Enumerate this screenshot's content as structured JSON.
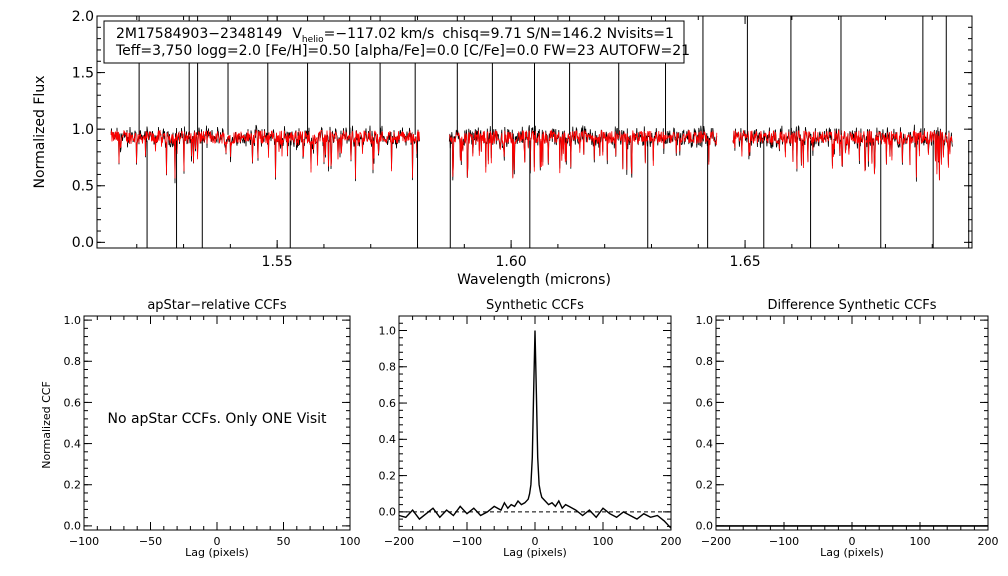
{
  "chart_data": [
    {
      "type": "line",
      "title": "",
      "xlabel": "Wavelength (microns)",
      "ylabel": "Normalized Flux",
      "xlim": [
        1.5115,
        1.6985
      ],
      "ylim": [
        -0.05,
        2.0
      ],
      "xticks": [
        1.55,
        1.6,
        1.65
      ],
      "xtick_labels": [
        "1.55",
        "1.60",
        "1.65"
      ],
      "yticks": [
        0.0,
        0.5,
        1.0,
        1.5,
        2.0
      ],
      "ytick_labels": [
        "0.0",
        "0.5",
        "1.0",
        "1.5",
        "2.0"
      ],
      "legend_box": {
        "line1": {
          "id": "2M17584903−2348149",
          "v_prefix": "V",
          "v_sub": "helio",
          "v_value": "=−117.02 km/s",
          "rest": "chisq=9.71  S/N=146.2  Nvisits=1"
        },
        "line2": "Teff=3,750 logg=2.0 [Fe/H]=0.50 [alpha/Fe]=0.0 [C/Fe]=0.0 FW=23 AUTOFW=21"
      },
      "detector_chips": [
        [
          1.5145,
          1.5805
        ],
        [
          1.5868,
          1.644
        ],
        [
          1.6474,
          1.6944
        ]
      ],
      "series": [
        {
          "name": "Observed spectrum",
          "color": "#000000"
        },
        {
          "name": "Best-fit model",
          "color": "#ff0000"
        }
      ]
    },
    {
      "type": "line",
      "title": "apStar−relative CCFs",
      "xlabel": "Lag (pixels)",
      "ylabel": "Normalized CCF",
      "xlim": [
        -100,
        100
      ],
      "ylim": [
        -0.02,
        1.02
      ],
      "xticks": [
        -100,
        -50,
        0,
        50,
        100
      ],
      "xtick_labels": [
        "−100",
        "−50",
        "0",
        "50",
        "100"
      ],
      "yticks": [
        0.0,
        0.2,
        0.4,
        0.6,
        0.8,
        1.0
      ],
      "ytick_labels": [
        "0.0",
        "0.2",
        "0.4",
        "0.6",
        "0.8",
        "1.0"
      ],
      "annotation": "No apStar CCFs.  Only ONE Visit",
      "series": []
    },
    {
      "type": "line",
      "title": "Synthetic CCFs",
      "xlabel": "Lag (pixels)",
      "ylabel": "",
      "xlim": [
        -200,
        200
      ],
      "ylim": [
        -0.1,
        1.08
      ],
      "xticks": [
        -200,
        -100,
        0,
        100,
        200
      ],
      "xtick_labels": [
        "−200",
        "−100",
        "0",
        "100",
        "200"
      ],
      "yticks": [
        0.0,
        0.2,
        0.4,
        0.6,
        0.8,
        1.0
      ],
      "ytick_labels": [
        "0.0",
        "0.2",
        "0.4",
        "0.6",
        "0.8",
        "1.0"
      ],
      "zero_line": 0.0,
      "series": [
        {
          "name": "Synthetic CCF",
          "color": "#000000",
          "x": [
            -200,
            -190,
            -180,
            -170,
            -160,
            -150,
            -140,
            -130,
            -120,
            -110,
            -100,
            -90,
            -80,
            -70,
            -60,
            -50,
            -45,
            -40,
            -35,
            -30,
            -25,
            -20,
            -15,
            -10,
            -8,
            -6,
            -4,
            -2,
            0,
            2,
            4,
            6,
            8,
            10,
            15,
            20,
            25,
            30,
            35,
            40,
            45,
            50,
            60,
            70,
            80,
            90,
            100,
            110,
            120,
            130,
            140,
            150,
            160,
            170,
            180,
            190,
            200
          ],
          "y": [
            -0.02,
            -0.03,
            0.01,
            -0.04,
            -0.01,
            0.02,
            -0.03,
            0.01,
            -0.02,
            0.03,
            -0.01,
            0.02,
            -0.02,
            0.0,
            0.03,
            0.01,
            0.05,
            0.02,
            0.04,
            0.03,
            0.06,
            0.04,
            0.05,
            0.07,
            0.1,
            0.15,
            0.3,
            0.65,
            1.0,
            0.65,
            0.3,
            0.15,
            0.11,
            0.08,
            0.06,
            0.04,
            0.05,
            0.03,
            0.06,
            0.02,
            0.04,
            0.03,
            0.01,
            -0.02,
            0.01,
            -0.03,
            0.02,
            -0.01,
            -0.03,
            0.0,
            -0.02,
            -0.04,
            -0.01,
            -0.03,
            -0.02,
            -0.05,
            -0.09
          ]
        }
      ]
    },
    {
      "type": "line",
      "title": "Difference Synthetic CCFs",
      "xlabel": "Lag (pixels)",
      "ylabel": "",
      "xlim": [
        -200,
        200
      ],
      "ylim": [
        -0.02,
        1.02
      ],
      "xticks": [
        -200,
        -100,
        0,
        100,
        200
      ],
      "xtick_labels": [
        "−200",
        "−100",
        "0",
        "100",
        "200"
      ],
      "yticks": [
        0.0,
        0.2,
        0.4,
        0.6,
        0.8,
        1.0
      ],
      "ytick_labels": [
        "0.0",
        "0.2",
        "0.4",
        "0.6",
        "0.8",
        "1.0"
      ],
      "series": [
        {
          "name": "Difference CCF",
          "color": "#000000",
          "x": [
            -200,
            200
          ],
          "y": [
            0.0,
            0.0
          ]
        }
      ]
    }
  ]
}
